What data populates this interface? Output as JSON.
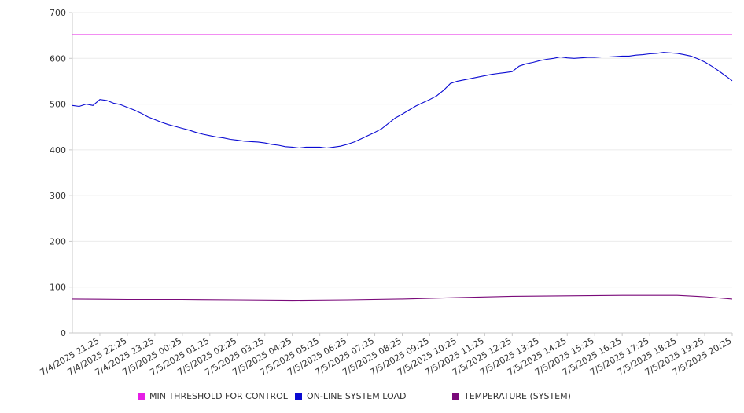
{
  "chart_data": {
    "type": "line",
    "ylim": [
      0,
      700
    ],
    "yticks": [
      0,
      100,
      200,
      300,
      400,
      500,
      600,
      700
    ],
    "grid": true,
    "legend_position": "bottom",
    "x_tick_labels": [
      "7/4/2025 21:25",
      "7/4/2025 22:25",
      "7/4/2025 23:25",
      "7/5/2025 00:25",
      "7/5/2025 01:25",
      "7/5/2025 02:25",
      "7/5/2025 03:25",
      "7/5/2025 04:25",
      "7/5/2025 05:25",
      "7/5/2025 06:25",
      "7/5/2025 07:25",
      "7/5/2025 08:25",
      "7/5/2025 09:25",
      "7/5/2025 10:25",
      "7/5/2025 11:25",
      "7/5/2025 12:25",
      "7/5/2025 13:25",
      "7/5/2025 14:25",
      "7/5/2025 15:25",
      "7/5/2025 16:25",
      "7/5/2025 17:25",
      "7/5/2025 18:25",
      "7/5/2025 19:25",
      "7/5/2025 20:25"
    ],
    "x_start": "7/4/2025 20:25",
    "x_end": "7/5/2025 20:25",
    "series": [
      {
        "name": "MIN THRESHOLD FOR CONTROL",
        "color": "#e61ee6",
        "points": [
          [
            "7/4/2025 20:25",
            652
          ],
          [
            "7/5/2025 20:25",
            652
          ]
        ]
      },
      {
        "name": "ON-LINE SYSTEM LOAD",
        "color": "#0a0ad2",
        "points": [
          [
            "7/4/2025 20:25",
            497
          ],
          [
            "7/4/2025 20:40",
            495
          ],
          [
            "7/4/2025 20:55",
            500
          ],
          [
            "7/4/2025 21:10",
            497
          ],
          [
            "7/4/2025 21:25",
            510
          ],
          [
            "7/4/2025 21:40",
            508
          ],
          [
            "7/4/2025 21:55",
            502
          ],
          [
            "7/4/2025 22:10",
            499
          ],
          [
            "7/4/2025 22:25",
            493
          ],
          [
            "7/4/2025 22:40",
            487
          ],
          [
            "7/4/2025 22:55",
            480
          ],
          [
            "7/4/2025 23:10",
            472
          ],
          [
            "7/4/2025 23:25",
            466
          ],
          [
            "7/4/2025 23:40",
            460
          ],
          [
            "7/4/2025 23:55",
            455
          ],
          [
            "7/5/2025 00:10",
            451
          ],
          [
            "7/5/2025 00:25",
            447
          ],
          [
            "7/5/2025 00:40",
            443
          ],
          [
            "7/5/2025 00:55",
            438
          ],
          [
            "7/5/2025 01:10",
            434
          ],
          [
            "7/5/2025 01:25",
            431
          ],
          [
            "7/5/2025 01:40",
            428
          ],
          [
            "7/5/2025 01:55",
            426
          ],
          [
            "7/5/2025 02:10",
            423
          ],
          [
            "7/5/2025 02:25",
            421
          ],
          [
            "7/5/2025 02:40",
            419
          ],
          [
            "7/5/2025 02:55",
            418
          ],
          [
            "7/5/2025 03:10",
            417
          ],
          [
            "7/5/2025 03:25",
            415
          ],
          [
            "7/5/2025 03:40",
            412
          ],
          [
            "7/5/2025 03:55",
            410
          ],
          [
            "7/5/2025 04:10",
            407
          ],
          [
            "7/5/2025 04:25",
            406
          ],
          [
            "7/5/2025 04:40",
            404
          ],
          [
            "7/5/2025 04:55",
            406
          ],
          [
            "7/5/2025 05:10",
            406
          ],
          [
            "7/5/2025 05:25",
            406
          ],
          [
            "7/5/2025 05:40",
            404
          ],
          [
            "7/5/2025 05:55",
            406
          ],
          [
            "7/5/2025 06:10",
            408
          ],
          [
            "7/5/2025 06:25",
            412
          ],
          [
            "7/5/2025 06:40",
            417
          ],
          [
            "7/5/2025 06:55",
            424
          ],
          [
            "7/5/2025 07:10",
            431
          ],
          [
            "7/5/2025 07:25",
            438
          ],
          [
            "7/5/2025 07:40",
            446
          ],
          [
            "7/5/2025 07:55",
            458
          ],
          [
            "7/5/2025 08:10",
            470
          ],
          [
            "7/5/2025 08:25",
            478
          ],
          [
            "7/5/2025 08:40",
            487
          ],
          [
            "7/5/2025 08:55",
            496
          ],
          [
            "7/5/2025 09:10",
            503
          ],
          [
            "7/5/2025 09:25",
            510
          ],
          [
            "7/5/2025 09:40",
            518
          ],
          [
            "7/5/2025 09:55",
            530
          ],
          [
            "7/5/2025 10:10",
            545
          ],
          [
            "7/5/2025 10:25",
            550
          ],
          [
            "7/5/2025 10:40",
            553
          ],
          [
            "7/5/2025 10:55",
            556
          ],
          [
            "7/5/2025 11:10",
            559
          ],
          [
            "7/5/2025 11:25",
            562
          ],
          [
            "7/5/2025 11:40",
            565
          ],
          [
            "7/5/2025 11:55",
            567
          ],
          [
            "7/5/2025 12:10",
            569
          ],
          [
            "7/5/2025 12:25",
            571
          ],
          [
            "7/5/2025 12:40",
            583
          ],
          [
            "7/5/2025 12:55",
            588
          ],
          [
            "7/5/2025 13:10",
            591
          ],
          [
            "7/5/2025 13:25",
            595
          ],
          [
            "7/5/2025 13:40",
            598
          ],
          [
            "7/5/2025 13:55",
            600
          ],
          [
            "7/5/2025 14:10",
            603
          ],
          [
            "7/5/2025 14:25",
            601
          ],
          [
            "7/5/2025 14:40",
            600
          ],
          [
            "7/5/2025 14:55",
            601
          ],
          [
            "7/5/2025 15:10",
            602
          ],
          [
            "7/5/2025 15:25",
            602
          ],
          [
            "7/5/2025 15:40",
            603
          ],
          [
            "7/5/2025 15:55",
            603
          ],
          [
            "7/5/2025 16:10",
            604
          ],
          [
            "7/5/2025 16:25",
            605
          ],
          [
            "7/5/2025 16:40",
            605
          ],
          [
            "7/5/2025 16:55",
            607
          ],
          [
            "7/5/2025 17:10",
            608
          ],
          [
            "7/5/2025 17:25",
            610
          ],
          [
            "7/5/2025 17:40",
            611
          ],
          [
            "7/5/2025 17:55",
            613
          ],
          [
            "7/5/2025 18:10",
            612
          ],
          [
            "7/5/2025 18:25",
            611
          ],
          [
            "7/5/2025 18:40",
            608
          ],
          [
            "7/5/2025 18:55",
            605
          ],
          [
            "7/5/2025 19:10",
            599
          ],
          [
            "7/5/2025 19:25",
            592
          ],
          [
            "7/5/2025 19:40",
            583
          ],
          [
            "7/5/2025 19:55",
            573
          ],
          [
            "7/5/2025 20:10",
            562
          ],
          [
            "7/5/2025 20:25",
            551
          ]
        ]
      },
      {
        "name": "TEMPERATURE (SYSTEM)",
        "color": "#7a0a7a",
        "points": [
          [
            "7/4/2025 20:25",
            74
          ],
          [
            "7/4/2025 22:25",
            73
          ],
          [
            "7/5/2025 00:25",
            73
          ],
          [
            "7/5/2025 02:25",
            72
          ],
          [
            "7/5/2025 04:25",
            71
          ],
          [
            "7/5/2025 06:25",
            72
          ],
          [
            "7/5/2025 08:25",
            74
          ],
          [
            "7/5/2025 10:25",
            77
          ],
          [
            "7/5/2025 12:25",
            80
          ],
          [
            "7/5/2025 14:25",
            81
          ],
          [
            "7/5/2025 16:25",
            82
          ],
          [
            "7/5/2025 18:25",
            82
          ],
          [
            "7/5/2025 19:25",
            79
          ],
          [
            "7/5/2025 20:25",
            74
          ]
        ]
      }
    ]
  }
}
